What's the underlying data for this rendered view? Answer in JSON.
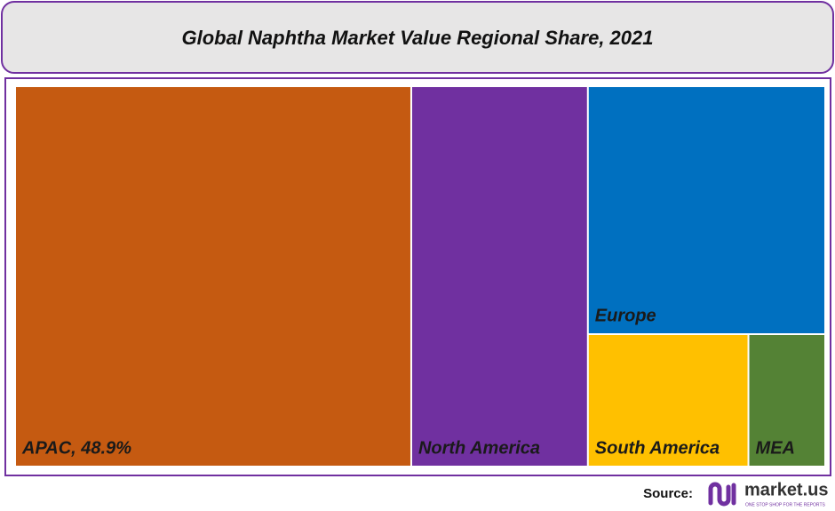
{
  "chart_data": {
    "type": "treemap",
    "title": "Global Naphtha Market Value Regional Share, 2021",
    "categories": [
      "APAC",
      "North America",
      "Europe",
      "South America",
      "MEA"
    ],
    "values": [
      48.9,
      21.8,
      19.1,
      6.9,
      3.3
    ],
    "value_labels": [
      "APAC, 48.9%",
      null,
      null,
      null,
      null
    ],
    "colors": [
      "#c55a11",
      "#7030a0",
      "#0070c0",
      "#ffc000",
      "#548235"
    ]
  },
  "footer": {
    "source": "Source:",
    "logo": "market.us",
    "tagline": "ONE STOP SHOP FOR THE REPORTS"
  }
}
